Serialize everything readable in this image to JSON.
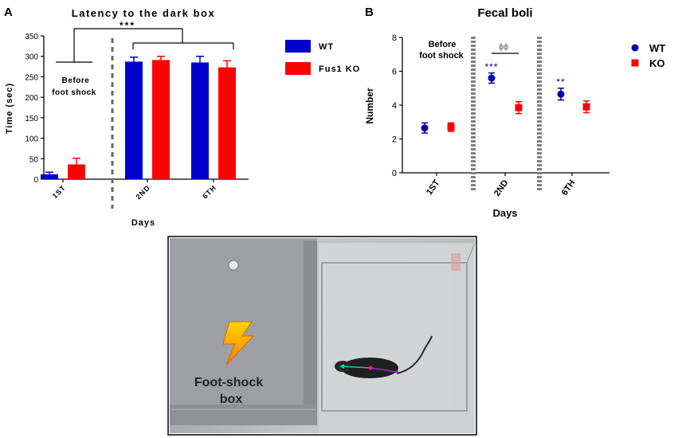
{
  "panel_a": {
    "label": "A",
    "title": "Latency to the dark box",
    "ylabel": "Time (sec)",
    "xlabel": "Days",
    "before_line1": "Before",
    "before_line2": "foot shock",
    "sig": "***",
    "colors": {
      "wt": "#0000cc",
      "ko": "#ff0000"
    }
  },
  "panel_b": {
    "label": "B",
    "title": "Fecal boli",
    "ylabel": "Number",
    "xlabel": "Days",
    "before_line1": "Before",
    "before_line2": "foot shock",
    "sig_2nd": "***",
    "sig_6th": "**",
    "sig_between": "ϕϕ",
    "colors": {
      "wt": "#0000aa",
      "ko": "#ff0000"
    }
  },
  "photo": {
    "label_line1": "Foot-shock",
    "label_line2": "box",
    "icon": "lightning-bolt-icon"
  },
  "chart_data": [
    {
      "type": "bar",
      "title": "Latency to the dark box",
      "xlabel": "Days",
      "ylabel": "Time (sec)",
      "ylim": [
        0,
        350
      ],
      "yticks": [
        0,
        50,
        100,
        150,
        200,
        250,
        300,
        350
      ],
      "categories": [
        "1ST",
        "2ND",
        "6TH"
      ],
      "series": [
        {
          "name": "WT",
          "values": [
            12,
            287,
            285
          ],
          "errors": [
            5,
            11,
            15
          ]
        },
        {
          "name": "Fus1 KO",
          "values": [
            36,
            291,
            273
          ],
          "errors": [
            15,
            9,
            16
          ]
        }
      ],
      "legend": "right",
      "annotations": [
        "***",
        "Before foot shock"
      ]
    },
    {
      "type": "scatter",
      "title": "Fecal boli",
      "xlabel": "Days",
      "ylabel": "Number",
      "ylim": [
        0,
        8
      ],
      "yticks": [
        0,
        2,
        4,
        6,
        8
      ],
      "categories": [
        "1ST",
        "2ND",
        "6TH"
      ],
      "series": [
        {
          "name": "WT",
          "values": [
            2.65,
            5.6,
            4.65
          ],
          "errors": [
            0.3,
            0.3,
            0.35
          ]
        },
        {
          "name": "KO",
          "values": [
            2.7,
            3.85,
            3.9
          ],
          "errors": [
            0.25,
            0.35,
            0.35
          ]
        }
      ],
      "legend": "right",
      "annotations": [
        "***",
        "**",
        "ϕϕ",
        "Before foot shock"
      ]
    }
  ]
}
